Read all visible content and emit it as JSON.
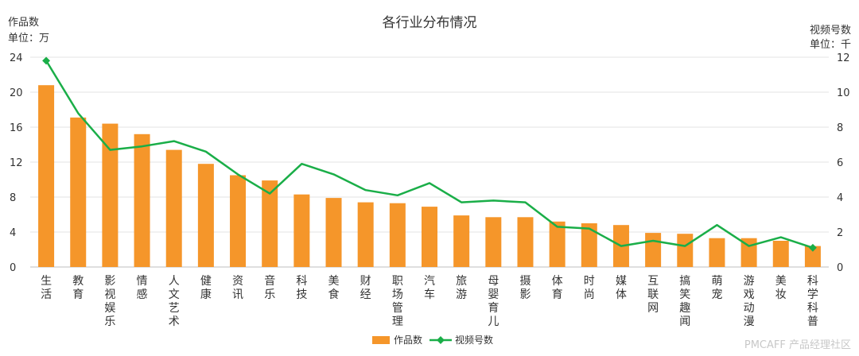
{
  "chart_data": {
    "type": "bar+line",
    "title": "各行业分布情况",
    "y_left_label_line1": "作品数",
    "y_left_label_line2": "单位：万",
    "y_right_label_line1": "视频号数",
    "y_right_label_line2": "单位：千",
    "y_left_ticks": [
      "0",
      "4",
      "8",
      "12",
      "16",
      "20",
      "24"
    ],
    "y_right_ticks": [
      "0",
      "2",
      "4",
      "6",
      "8",
      "10",
      "12"
    ],
    "ylim_left": [
      0,
      24
    ],
    "ylim_right": [
      0,
      12
    ],
    "categories": [
      "生活",
      "教育",
      "影视娱乐",
      "情感",
      "人文艺术",
      "健康",
      "资讯",
      "音乐",
      "科技",
      "美食",
      "财经",
      "职场管理",
      "汽车",
      "旅游",
      "母婴育儿",
      "摄影",
      "体育",
      "时尚",
      "媒体",
      "互联网",
      "搞笑趣闻",
      "萌宠",
      "游戏动漫",
      "美妆",
      "科学科普"
    ],
    "series": [
      {
        "name": "作品数",
        "type": "bar",
        "axis": "left",
        "color": "#F5962A",
        "values": [
          20.8,
          17.1,
          16.4,
          15.2,
          13.4,
          11.8,
          10.5,
          9.9,
          8.3,
          7.9,
          7.4,
          7.3,
          6.9,
          5.9,
          5.7,
          5.7,
          5.2,
          5.0,
          4.8,
          3.9,
          3.8,
          3.3,
          3.3,
          3.0,
          2.4
        ]
      },
      {
        "name": "视频号数",
        "type": "line",
        "axis": "right",
        "color": "#1AAE48",
        "values": [
          11.8,
          8.8,
          6.7,
          6.9,
          7.2,
          6.6,
          5.3,
          4.2,
          5.9,
          5.3,
          4.4,
          4.1,
          4.8,
          3.7,
          3.8,
          3.7,
          2.3,
          2.2,
          1.2,
          1.5,
          1.2,
          2.4,
          1.2,
          1.7,
          1.1
        ]
      }
    ],
    "legend_position": "bottom-center",
    "grid": true
  },
  "watermark": "PMCAFF 产品经理社区"
}
